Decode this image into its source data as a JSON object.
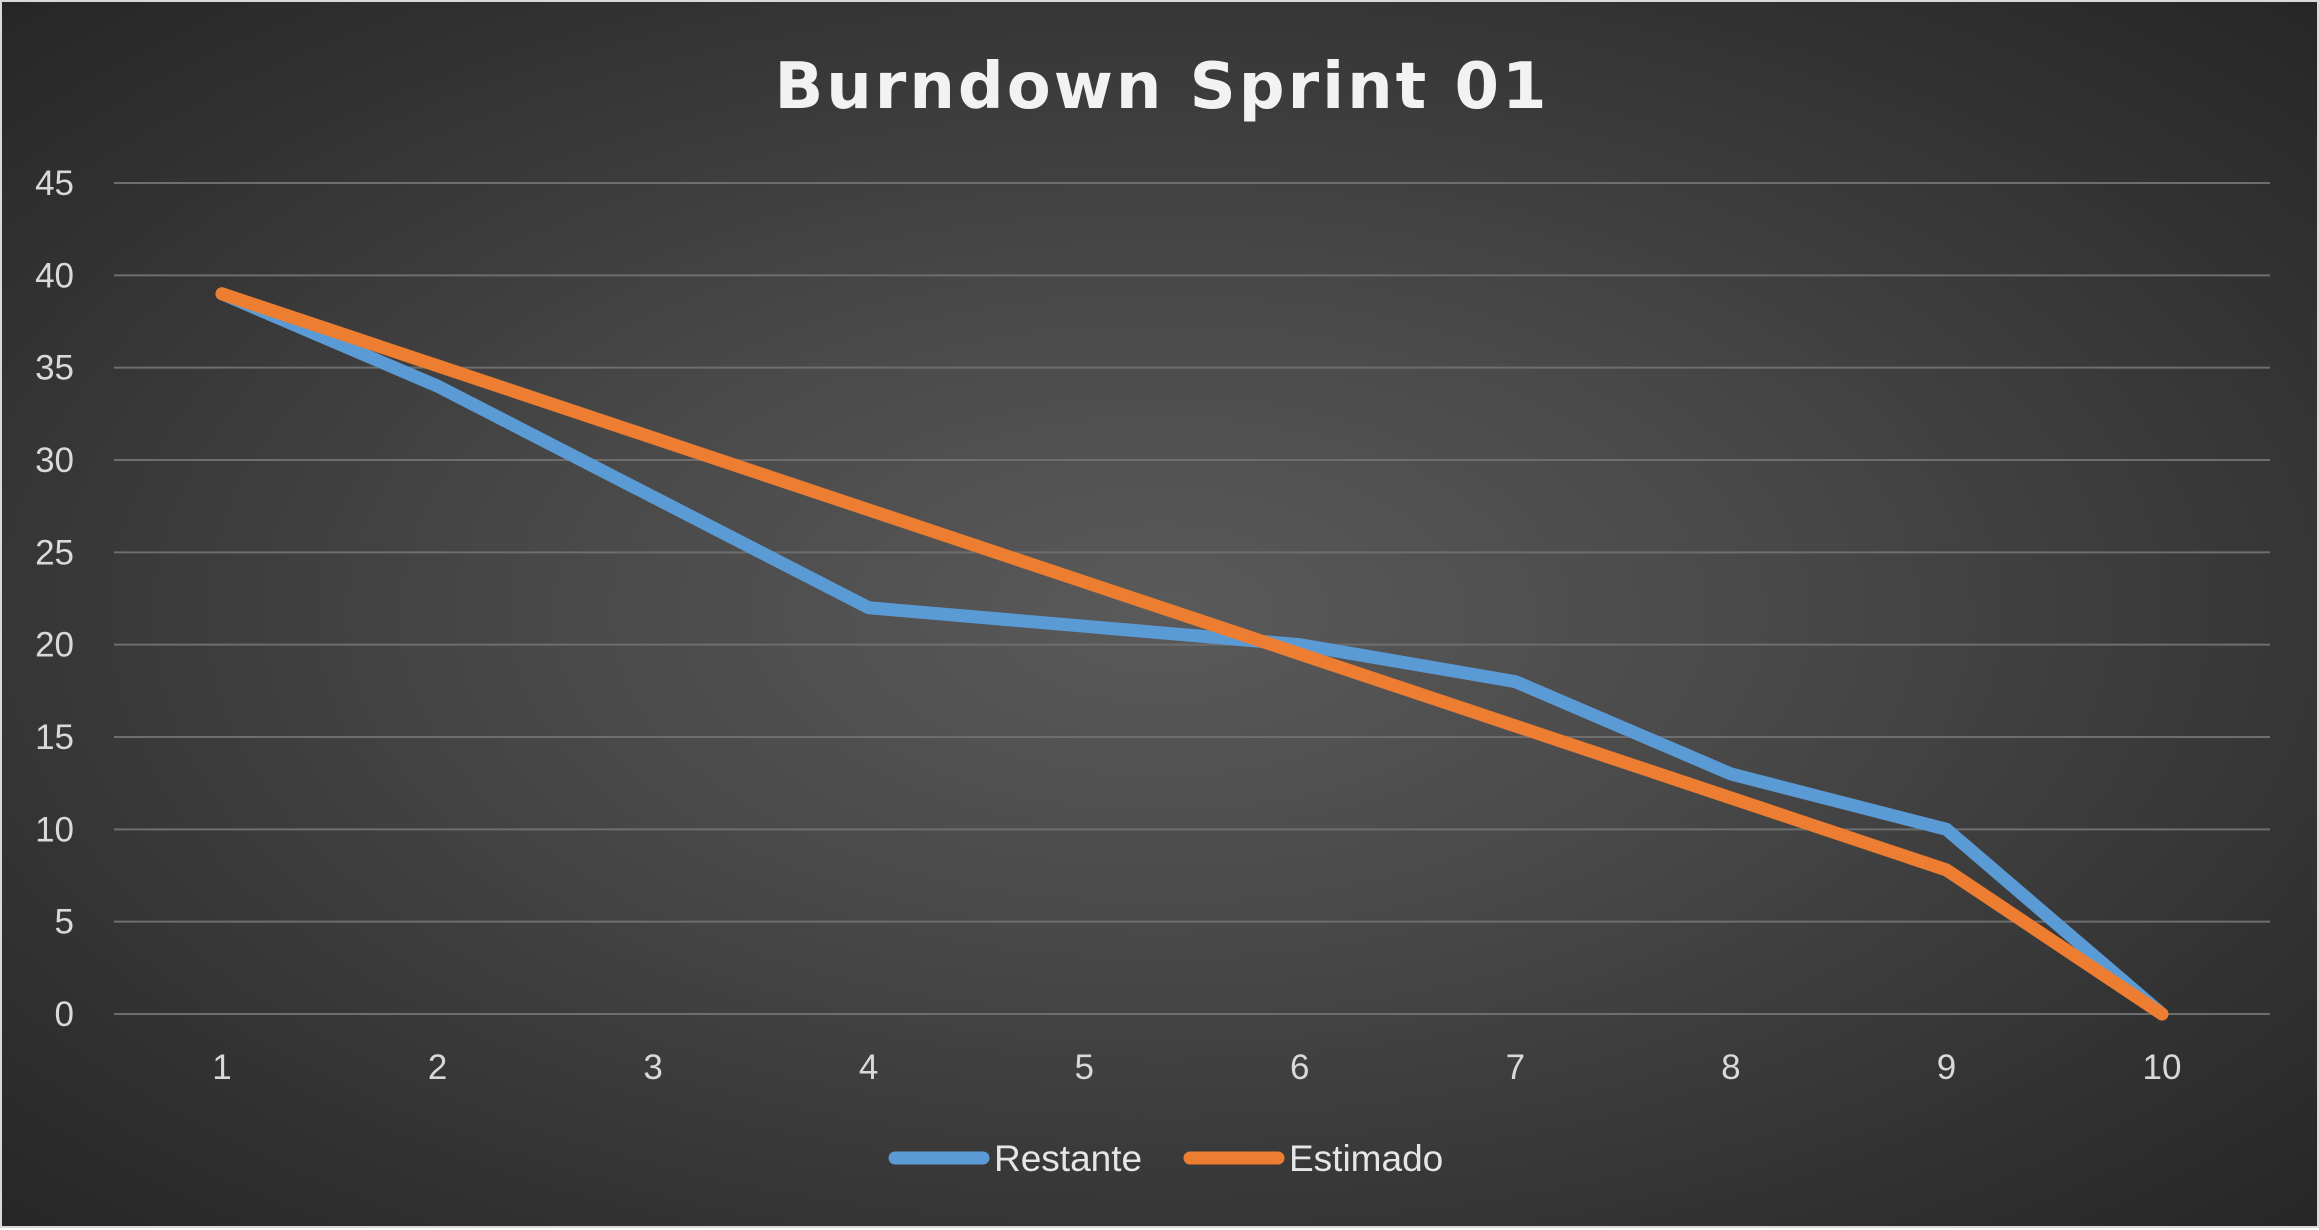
{
  "chart_data": {
    "type": "line",
    "title": "Burndown Sprint 01",
    "xlabel": "",
    "ylabel": "",
    "categories": [
      "1",
      "2",
      "3",
      "4",
      "5",
      "6",
      "7",
      "8",
      "9",
      "10"
    ],
    "ylim": [
      0,
      45
    ],
    "yticks": [
      "0",
      "5",
      "10",
      "15",
      "20",
      "25",
      "30",
      "35",
      "40",
      "45"
    ],
    "grid": true,
    "legend_position": "bottom",
    "series": [
      {
        "name": "Restante",
        "color": "#5b9bd5",
        "values": [
          39,
          34,
          28,
          22,
          21,
          20,
          18,
          13,
          10,
          0
        ]
      },
      {
        "name": "Estimado",
        "color": "#ed7d31",
        "values": [
          39,
          35.1,
          31.2,
          27.3,
          23.4,
          19.5,
          15.6,
          11.7,
          7.8,
          0
        ]
      }
    ]
  }
}
